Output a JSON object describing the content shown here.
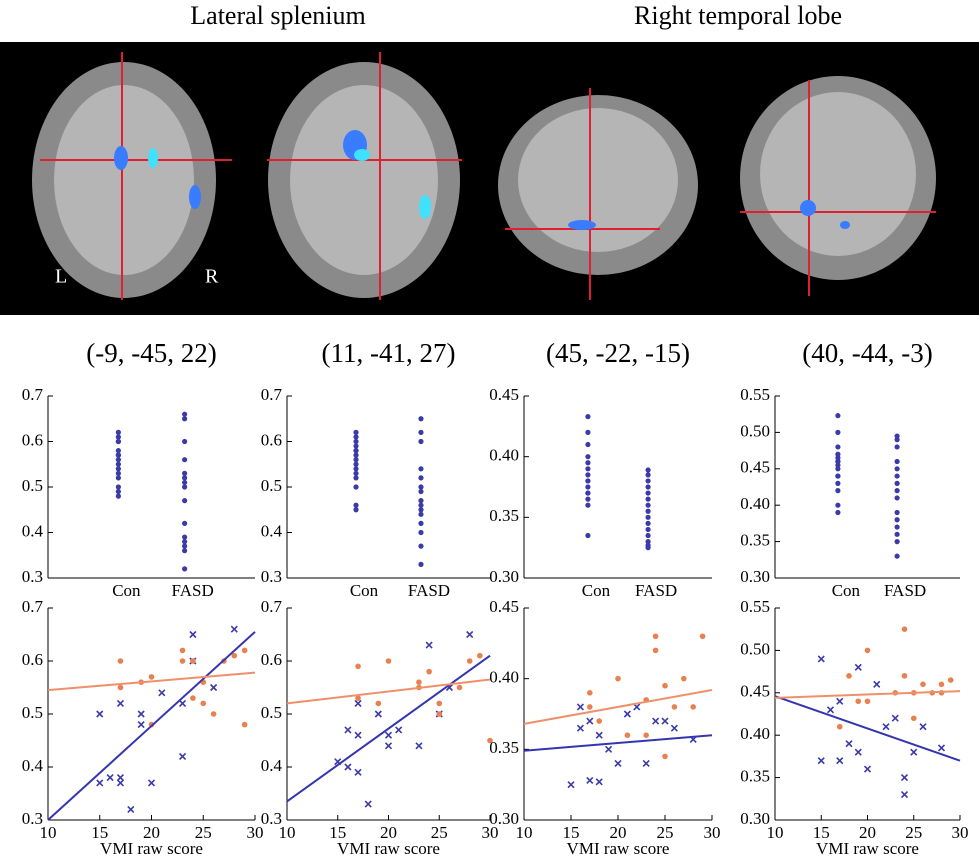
{
  "figure": {
    "headers": [
      "Lateral splenium",
      "Right temporal lobe"
    ],
    "orientation_labels": [
      "L",
      "R"
    ]
  },
  "chart_data": [
    {
      "type": "strip",
      "title": "(-9, -45, 22)",
      "categories": [
        "Con",
        "FASD"
      ],
      "color": "#3a3aa8",
      "values": [
        [
          0.48,
          0.49,
          0.5,
          0.52,
          0.53,
          0.55,
          0.56,
          0.57,
          0.58,
          0.6,
          0.61,
          0.62,
          0.6,
          0.57,
          0.54
        ],
        [
          0.32,
          0.36,
          0.37,
          0.38,
          0.39,
          0.42,
          0.47,
          0.5,
          0.51,
          0.52,
          0.53,
          0.56,
          0.6,
          0.65,
          0.66
        ]
      ],
      "ylim": [
        0.3,
        0.7
      ],
      "yticks": [
        0.3,
        0.4,
        0.5,
        0.6,
        0.7
      ]
    },
    {
      "type": "strip",
      "title": "(11, -41, 27)",
      "categories": [
        "Con",
        "FASD"
      ],
      "color": "#3a3aa8",
      "values": [
        [
          0.46,
          0.45,
          0.5,
          0.52,
          0.53,
          0.55,
          0.56,
          0.57,
          0.58,
          0.59,
          0.6,
          0.61,
          0.62,
          0.54,
          0.58
        ],
        [
          0.33,
          0.37,
          0.4,
          0.42,
          0.44,
          0.45,
          0.46,
          0.47,
          0.49,
          0.5,
          0.52,
          0.54,
          0.6,
          0.62,
          0.65
        ]
      ],
      "ylim": [
        0.3,
        0.7
      ],
      "yticks": [
        0.3,
        0.4,
        0.5,
        0.6,
        0.7
      ]
    },
    {
      "type": "strip",
      "title": "(45, -22, -15)",
      "categories": [
        "Con",
        "FASD"
      ],
      "color": "#3a3aa8",
      "values": [
        [
          0.335,
          0.36,
          0.365,
          0.37,
          0.375,
          0.38,
          0.385,
          0.39,
          0.395,
          0.4,
          0.41,
          0.42,
          0.433,
          0.37,
          0.38
        ],
        [
          0.325,
          0.327,
          0.33,
          0.335,
          0.34,
          0.345,
          0.35,
          0.355,
          0.36,
          0.365,
          0.37,
          0.375,
          0.38,
          0.385,
          0.389
        ]
      ],
      "ylim": [
        0.3,
        0.45
      ],
      "yticks": [
        {
          "value": 0.3,
          "label": "0.30"
        },
        {
          "value": 0.35,
          "label": "0.35"
        },
        {
          "value": 0.4,
          "label": "0.40"
        },
        {
          "value": 0.45,
          "label": "0.45"
        }
      ]
    },
    {
      "type": "strip",
      "title": "(40, -44, -3)",
      "categories": [
        "Con",
        "FASD"
      ],
      "color": "#3a3aa8",
      "values": [
        [
          0.39,
          0.4,
          0.42,
          0.43,
          0.44,
          0.45,
          0.455,
          0.46,
          0.465,
          0.47,
          0.48,
          0.5,
          0.523,
          0.44,
          0.46
        ],
        [
          0.33,
          0.35,
          0.36,
          0.37,
          0.38,
          0.39,
          0.41,
          0.42,
          0.43,
          0.44,
          0.45,
          0.46,
          0.48,
          0.49,
          0.495
        ]
      ],
      "ylim": [
        0.3,
        0.55
      ],
      "yticks": [
        {
          "value": 0.3,
          "label": "0.30"
        },
        {
          "value": 0.35,
          "label": "0.35"
        },
        {
          "value": 0.4,
          "label": "0.40"
        },
        {
          "value": 0.45,
          "label": "0.45"
        },
        {
          "value": 0.5,
          "label": "0.50"
        },
        {
          "value": 0.55,
          "label": "0.55"
        }
      ]
    },
    {
      "type": "scatter",
      "xlabel": "VMI raw score",
      "xlim": [
        10,
        30
      ],
      "xticks": [
        10,
        15,
        20,
        25,
        30
      ],
      "ylim": [
        0.3,
        0.7
      ],
      "yticks": [
        0.3,
        0.4,
        0.5,
        0.6,
        0.7
      ],
      "series": [
        {
          "color": "#3a3aa8",
          "marker": "x",
          "x": [
            15,
            16,
            17,
            17,
            18,
            19,
            20,
            17,
            15,
            21,
            23,
            23,
            24,
            24,
            28,
            26,
            19
          ],
          "values": [
            0.37,
            0.38,
            0.37,
            0.38,
            0.32,
            0.5,
            0.37,
            0.52,
            0.5,
            0.54,
            0.42,
            0.52,
            0.65,
            0.6,
            0.66,
            0.55,
            0.48
          ]
        },
        {
          "color": "#e8804f",
          "marker": "circle",
          "x": [
            17,
            17,
            19,
            20,
            20,
            23,
            23,
            24,
            24,
            25,
            26,
            27,
            28,
            29,
            29,
            25
          ],
          "values": [
            0.6,
            0.55,
            0.56,
            0.57,
            0.48,
            0.6,
            0.62,
            0.6,
            0.53,
            0.52,
            0.5,
            0.6,
            0.61,
            0.62,
            0.48,
            0.56
          ]
        }
      ],
      "fit_lines": [
        {
          "color": "#3535b0",
          "x": [
            10,
            30
          ],
          "values": [
            0.3,
            0.655
          ]
        },
        {
          "color": "#f0906a",
          "x": [
            10,
            30
          ],
          "values": [
            0.545,
            0.578
          ]
        }
      ]
    },
    {
      "type": "scatter",
      "xlabel": "VMI raw score",
      "xlim": [
        10,
        30
      ],
      "xticks": [
        10,
        15,
        20,
        25,
        30
      ],
      "ylim": [
        0.3,
        0.7
      ],
      "yticks": [
        0.3,
        0.4,
        0.5,
        0.6,
        0.7
      ],
      "series": [
        {
          "color": "#3a3aa8",
          "marker": "x",
          "x": [
            15,
            16,
            17,
            17,
            18,
            19,
            20,
            20,
            17,
            16,
            23,
            24,
            25,
            26,
            28,
            21
          ],
          "values": [
            0.41,
            0.4,
            0.39,
            0.46,
            0.33,
            0.5,
            0.44,
            0.46,
            0.52,
            0.47,
            0.44,
            0.63,
            0.5,
            0.55,
            0.65,
            0.47
          ]
        },
        {
          "color": "#e8804f",
          "marker": "circle",
          "x": [
            17,
            17,
            20,
            23,
            24,
            25,
            25,
            27,
            28,
            29,
            30,
            23,
            19
          ],
          "values": [
            0.53,
            0.59,
            0.6,
            0.55,
            0.58,
            0.52,
            0.5,
            0.55,
            0.6,
            0.61,
            0.45,
            0.56,
            0.52
          ]
        }
      ],
      "fit_lines": [
        {
          "color": "#3535b0",
          "x": [
            10,
            30
          ],
          "values": [
            0.335,
            0.61
          ]
        },
        {
          "color": "#f0906a",
          "x": [
            10,
            30
          ],
          "values": [
            0.52,
            0.565
          ]
        }
      ]
    },
    {
      "type": "scatter",
      "xlabel": "VMI raw score",
      "xlim": [
        10,
        30
      ],
      "xticks": [
        10,
        15,
        20,
        25,
        30
      ],
      "ylim": [
        0.3,
        0.45
      ],
      "yticks": [
        {
          "value": 0.3,
          "label": "0.30"
        },
        {
          "value": 0.35,
          "label": "0.35"
        },
        {
          "value": 0.4,
          "label": "0.40"
        },
        {
          "value": 0.45,
          "label": "0.45"
        }
      ],
      "series": [
        {
          "color": "#3a3aa8",
          "marker": "x",
          "x": [
            15,
            16,
            17,
            17,
            18,
            19,
            20,
            21,
            22,
            23,
            24,
            25,
            26,
            28,
            16,
            18
          ],
          "values": [
            0.325,
            0.38,
            0.328,
            0.37,
            0.327,
            0.35,
            0.34,
            0.375,
            0.38,
            0.34,
            0.37,
            0.37,
            0.365,
            0.357,
            0.365,
            0.36
          ]
        },
        {
          "color": "#e8804f",
          "marker": "circle",
          "x": [
            17,
            17,
            18,
            20,
            21,
            23,
            23,
            24,
            24,
            25,
            26,
            27,
            28,
            29,
            25
          ],
          "values": [
            0.38,
            0.39,
            0.37,
            0.4,
            0.36,
            0.36,
            0.385,
            0.43,
            0.42,
            0.395,
            0.38,
            0.4,
            0.38,
            0.43,
            0.345
          ]
        }
      ],
      "fit_lines": [
        {
          "color": "#3535b0",
          "x": [
            10,
            30
          ],
          "values": [
            0.349,
            0.36
          ]
        },
        {
          "color": "#f0906a",
          "x": [
            10,
            30
          ],
          "values": [
            0.368,
            0.392
          ]
        }
      ]
    },
    {
      "type": "scatter",
      "xlabel": "VMI raw score",
      "xlim": [
        10,
        30
      ],
      "xticks": [
        10,
        15,
        20,
        25,
        30
      ],
      "ylim": [
        0.3,
        0.55
      ],
      "yticks": [
        {
          "value": 0.3,
          "label": "0.30"
        },
        {
          "value": 0.35,
          "label": "0.35"
        },
        {
          "value": 0.4,
          "label": "0.40"
        },
        {
          "value": 0.45,
          "label": "0.45"
        },
        {
          "value": 0.5,
          "label": "0.50"
        },
        {
          "value": 0.55,
          "label": "0.55"
        }
      ],
      "series": [
        {
          "color": "#3a3aa8",
          "marker": "x",
          "x": [
            15,
            16,
            17,
            17,
            18,
            19,
            19,
            20,
            21,
            22,
            23,
            24,
            24,
            25,
            26,
            28,
            15
          ],
          "values": [
            0.49,
            0.43,
            0.37,
            0.44,
            0.39,
            0.38,
            0.48,
            0.36,
            0.46,
            0.41,
            0.42,
            0.33,
            0.35,
            0.38,
            0.41,
            0.385,
            0.37
          ]
        },
        {
          "color": "#e8804f",
          "marker": "circle",
          "x": [
            17,
            18,
            19,
            20,
            20,
            23,
            24,
            24,
            25,
            26,
            27,
            28,
            29,
            28,
            25
          ],
          "values": [
            0.41,
            0.47,
            0.44,
            0.5,
            0.44,
            0.45,
            0.525,
            0.47,
            0.42,
            0.46,
            0.45,
            0.46,
            0.465,
            0.45,
            0.45
          ]
        }
      ],
      "fit_lines": [
        {
          "color": "#3535b0",
          "x": [
            10,
            30
          ],
          "values": [
            0.446,
            0.37
          ]
        },
        {
          "color": "#f0906a",
          "x": [
            10,
            30
          ],
          "values": [
            0.444,
            0.452
          ]
        }
      ]
    }
  ]
}
